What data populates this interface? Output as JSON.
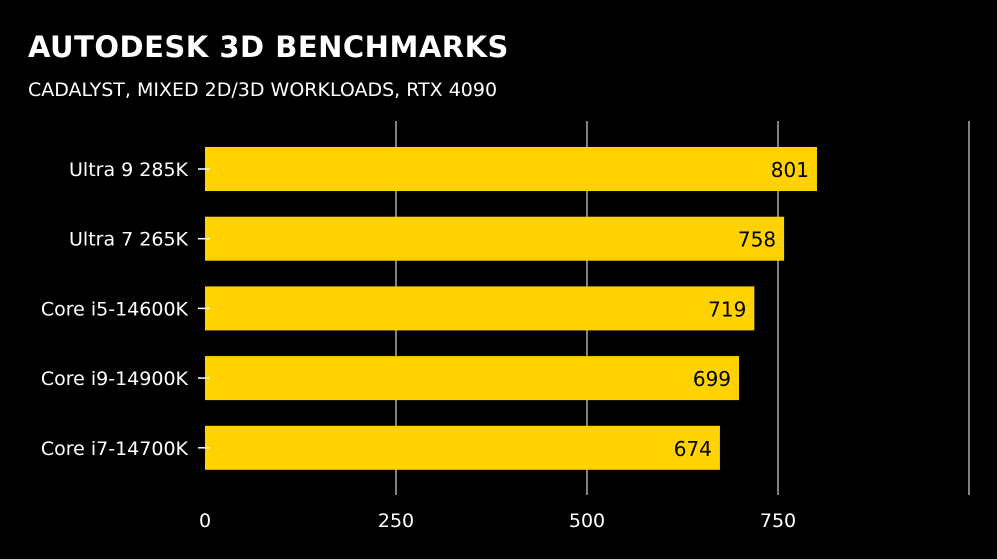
{
  "chart_data": {
    "type": "bar",
    "orientation": "horizontal",
    "title": "AUTODESK 3D BENCHMARKS",
    "subtitle": "CADALYST, MIXED 2D/3D WORKLOADS, RTX 4090",
    "categories": [
      "Ultra 9 285K",
      "Ultra 7 265K",
      "Core i5-14600K",
      "Core i9-14900K",
      "Core i7-14700K"
    ],
    "values": [
      801,
      758,
      719,
      699,
      674
    ],
    "xlabel": "",
    "ylabel": "",
    "xlim": [
      0,
      1000
    ],
    "xticks": [
      0,
      250,
      500,
      750
    ],
    "gridlines": [
      250,
      500,
      750,
      1000
    ],
    "grid": true,
    "bar_color": "#FFD200",
    "background": "#000000"
  }
}
